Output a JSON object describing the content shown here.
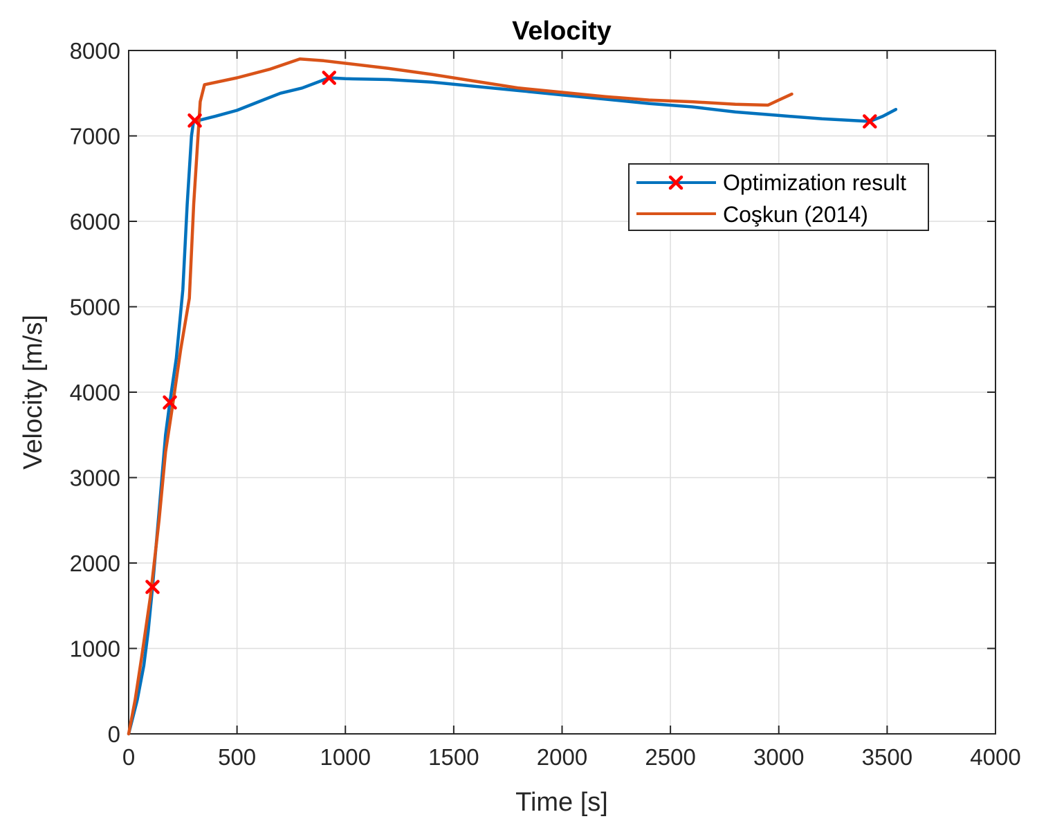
{
  "chart_data": {
    "type": "line",
    "title": "Velocity",
    "xlabel": "Time [s]",
    "ylabel": "Velocity [m/s]",
    "xlim": [
      0,
      4000
    ],
    "ylim": [
      0,
      8000
    ],
    "xticks": [
      0,
      500,
      1000,
      1500,
      2000,
      2500,
      3000,
      3500,
      4000
    ],
    "yticks": [
      0,
      1000,
      2000,
      3000,
      4000,
      5000,
      6000,
      7000,
      8000
    ],
    "grid": true,
    "legend_position": "upper-right",
    "series": [
      {
        "name": "Optimization result",
        "color": "#0072BD",
        "marker": "x",
        "marker_color": "#FF0000",
        "x": [
          0,
          40,
          70,
          90,
          110,
          140,
          170,
          190,
          220,
          250,
          270,
          290,
          300,
          320,
          400,
          500,
          600,
          700,
          800,
          925,
          1000,
          1200,
          1400,
          1600,
          1800,
          2000,
          2200,
          2400,
          2600,
          2800,
          3000,
          3200,
          3420,
          3480,
          3540
        ],
        "y": [
          0,
          400,
          800,
          1200,
          1720,
          2600,
          3500,
          3880,
          4400,
          5200,
          6200,
          7000,
          7180,
          7180,
          7230,
          7300,
          7400,
          7500,
          7560,
          7680,
          7670,
          7660,
          7630,
          7580,
          7530,
          7480,
          7430,
          7380,
          7340,
          7280,
          7240,
          7200,
          7170,
          7230,
          7310
        ],
        "marker_points": [
          [
            110,
            1720
          ],
          [
            190,
            3880
          ],
          [
            305,
            7180
          ],
          [
            925,
            7680
          ],
          [
            3420,
            7170
          ]
        ]
      },
      {
        "name": "Coşkun (2014)",
        "color": "#D95319",
        "x": [
          0,
          30,
          60,
          100,
          140,
          170,
          200,
          240,
          280,
          300,
          330,
          350,
          500,
          650,
          790,
          900,
          1000,
          1200,
          1400,
          1600,
          1800,
          2000,
          2200,
          2400,
          2600,
          2800,
          2950,
          3000,
          3060
        ],
        "y": [
          0,
          400,
          900,
          1600,
          2500,
          3300,
          3800,
          4500,
          5100,
          6200,
          7400,
          7600,
          7680,
          7780,
          7900,
          7880,
          7850,
          7790,
          7720,
          7640,
          7560,
          7510,
          7460,
          7420,
          7400,
          7370,
          7360,
          7420,
          7490
        ]
      }
    ]
  }
}
